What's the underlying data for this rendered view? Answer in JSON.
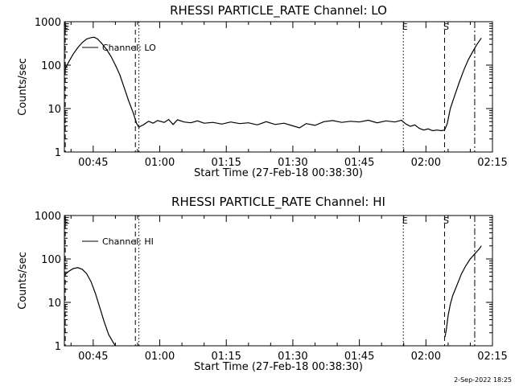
{
  "footer": {
    "timestamp": "2-Sep-2022 18:25"
  },
  "chart_data": [
    {
      "type": "line",
      "title": "RHESSI PARTICLE_RATE Channel: LO",
      "xlabel": "Start Time (27-Feb-18 00:38:30)",
      "ylabel": "Counts/sec",
      "yscale": "log",
      "ylim": [
        1,
        1000
      ],
      "xlim_minutes": [
        38.5,
        135
      ],
      "x_tick_labels": [
        "00:45",
        "01:00",
        "01:15",
        "01:30",
        "01:45",
        "02:00",
        "02:15"
      ],
      "x_tick_minutes": [
        45,
        60,
        75,
        90,
        105,
        120,
        135
      ],
      "y_tick_labels": [
        "1",
        "10",
        "100",
        "1000"
      ],
      "y_tick_values": [
        1,
        10,
        100,
        1000
      ],
      "legend": {
        "label": "Channel: LO",
        "position": "top-left"
      },
      "markers": [
        {
          "label": "E",
          "minute": 38.7,
          "style": "dashed"
        },
        {
          "label": "",
          "minute": 54.5,
          "style": "dashed"
        },
        {
          "label": "",
          "minute": 55.3,
          "style": "dotted"
        },
        {
          "label": "E",
          "minute": 114.9,
          "style": "dotted"
        },
        {
          "label": "S",
          "minute": 124.2,
          "style": "dashed"
        },
        {
          "label": "",
          "minute": 131.0,
          "style": "dashdot"
        }
      ],
      "series": [
        {
          "x_minutes": [
            38.5,
            39.5,
            40.5,
            41.5,
            42.5,
            43.5,
            44.5,
            45.2,
            46.0,
            47.0,
            48.0,
            49.0,
            50.0,
            51.0,
            52.0,
            53.0,
            54.0,
            54.8,
            55.3,
            55.8,
            56.3,
            57.5,
            58.5,
            59.5,
            61,
            62,
            63,
            64,
            65.5,
            67,
            68.5,
            70,
            72,
            74,
            76,
            78,
            80,
            82,
            84,
            86,
            88,
            90,
            91.5,
            93,
            95,
            97,
            99,
            101,
            103,
            105,
            107,
            109,
            111,
            113,
            114.5,
            115.5,
            116.5,
            117.5,
            118.5,
            119.5,
            120.5,
            121.5,
            122.5,
            123.5,
            124.2,
            124.8,
            125.5,
            126.5,
            127.5,
            128.5,
            129.5,
            130.5,
            131.5,
            132.5
          ],
          "values": [
            75,
            120,
            180,
            250,
            330,
            400,
            430,
            440,
            400,
            310,
            230,
            160,
            100,
            60,
            30,
            15,
            8,
            4.5,
            3.7,
            4.0,
            4.2,
            5.1,
            4.6,
            5.3,
            4.8,
            5.6,
            4.3,
            5.5,
            4.9,
            4.7,
            5.2,
            4.6,
            4.8,
            4.4,
            4.9,
            4.5,
            4.7,
            4.2,
            5.0,
            4.3,
            4.6,
            4.0,
            3.6,
            4.5,
            4.1,
            5.0,
            5.3,
            4.8,
            5.1,
            4.9,
            5.4,
            4.7,
            5.2,
            4.9,
            5.4,
            4.4,
            3.9,
            4.2,
            3.5,
            3.2,
            3.4,
            3.1,
            3.2,
            3.1,
            3.2,
            4.5,
            10,
            20,
            40,
            75,
            130,
            200,
            300,
            420
          ]
        }
      ]
    },
    {
      "type": "line",
      "title": "RHESSI PARTICLE_RATE Channel: HI",
      "xlabel": "Start Time (27-Feb-18 00:38:30)",
      "ylabel": "Counts/sec",
      "yscale": "log",
      "ylim": [
        1,
        1000
      ],
      "xlim_minutes": [
        38.5,
        135
      ],
      "x_tick_labels": [
        "00:45",
        "01:00",
        "01:15",
        "01:30",
        "01:45",
        "02:00",
        "02:15"
      ],
      "x_tick_minutes": [
        45,
        60,
        75,
        90,
        105,
        120,
        135
      ],
      "y_tick_labels": [
        "1",
        "10",
        "100",
        "1000"
      ],
      "y_tick_values": [
        1,
        10,
        100,
        1000
      ],
      "legend": {
        "label": "Channel: HI",
        "position": "top-left"
      },
      "markers": [
        {
          "label": "E",
          "minute": 38.7,
          "style": "dashed"
        },
        {
          "label": "",
          "minute": 54.5,
          "style": "dashed"
        },
        {
          "label": "",
          "minute": 55.3,
          "style": "dotted"
        },
        {
          "label": "E",
          "minute": 114.9,
          "style": "dotted"
        },
        {
          "label": "S",
          "minute": 124.2,
          "style": "dashed"
        },
        {
          "label": "",
          "minute": 131.0,
          "style": "dashdot"
        }
      ],
      "series": [
        {
          "x_minutes": [
            38.5,
            39.5,
            40.5,
            41.5,
            42.5,
            43.5,
            44.5,
            45.5,
            46.5,
            47.5,
            48.5,
            49.5,
            50.0
          ],
          "values": [
            42,
            52,
            60,
            63,
            58,
            46,
            30,
            16,
            7.5,
            3.5,
            1.8,
            1.2,
            1.0
          ]
        },
        {
          "x_minutes": [
            124.3,
            124.6,
            125.0,
            125.5,
            126.0,
            127.0,
            128.0,
            129.0,
            130.0,
            131.0,
            132.0,
            132.5
          ],
          "values": [
            1.6,
            2.4,
            5.0,
            9.0,
            14,
            25,
            45,
            70,
            100,
            130,
            170,
            200
          ]
        }
      ]
    }
  ]
}
